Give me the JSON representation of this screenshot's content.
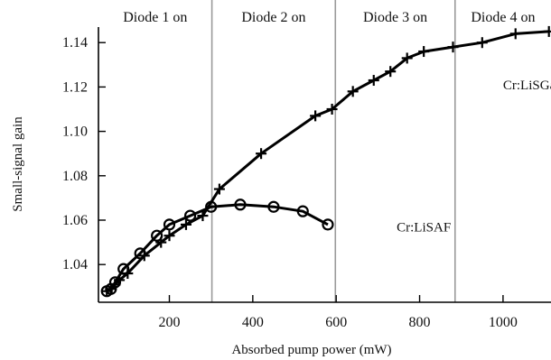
{
  "chart_data": {
    "type": "line",
    "xlabel": "Absorbed pump power (mW)",
    "ylabel": "Small-signal gain",
    "xlim": [
      30,
      1115
    ],
    "ylim": [
      1.023,
      1.147
    ],
    "xticks": [
      200,
      400,
      600,
      800,
      1000
    ],
    "xtick_labels": [
      "200",
      "400",
      "600",
      "800",
      "1000"
    ],
    "yticks": [
      1.04,
      1.06,
      1.08,
      1.1,
      1.12,
      1.14
    ],
    "ytick_labels": [
      "1.04",
      "1.06",
      "1.08",
      "1.10",
      "1.12",
      "1.14"
    ],
    "grid": false,
    "regions": [
      {
        "label": "Diode 1 on",
        "from": 30,
        "to": 302
      },
      {
        "label": "Diode 2 on",
        "from": 302,
        "to": 598
      },
      {
        "label": "Diode 3 on",
        "from": 598,
        "to": 885
      },
      {
        "label": "Diode 4 on",
        "from": 885,
        "to": 1115
      }
    ],
    "dividers": [
      302,
      598,
      885
    ],
    "series": [
      {
        "name": "Cr:LiSGaF",
        "marker": "plus",
        "x": [
          50,
          60,
          70,
          80,
          100,
          140,
          180,
          200,
          240,
          280,
          320,
          420,
          550,
          590,
          640,
          690,
          730,
          770,
          810,
          880,
          950,
          1030,
          1110
        ],
        "y": [
          1.028,
          1.029,
          1.031,
          1.033,
          1.036,
          1.044,
          1.05,
          1.053,
          1.058,
          1.062,
          1.074,
          1.09,
          1.107,
          1.11,
          1.118,
          1.123,
          1.127,
          1.133,
          1.136,
          1.138,
          1.14,
          1.144,
          1.145
        ]
      },
      {
        "name": "Cr:LiSAF",
        "marker": "circle",
        "x": [
          50,
          60,
          70,
          90,
          130,
          170,
          200,
          250,
          300,
          370,
          450,
          520,
          580
        ],
        "y": [
          1.028,
          1.029,
          1.032,
          1.038,
          1.045,
          1.053,
          1.058,
          1.062,
          1.066,
          1.067,
          1.066,
          1.064,
          1.058
        ]
      }
    ],
    "annotations": [
      {
        "text": "Cr:LiSGaF",
        "x": 1000,
        "y": 1.121
      },
      {
        "text": "Cr:LiSAF",
        "x": 745,
        "y": 1.057
      }
    ]
  }
}
